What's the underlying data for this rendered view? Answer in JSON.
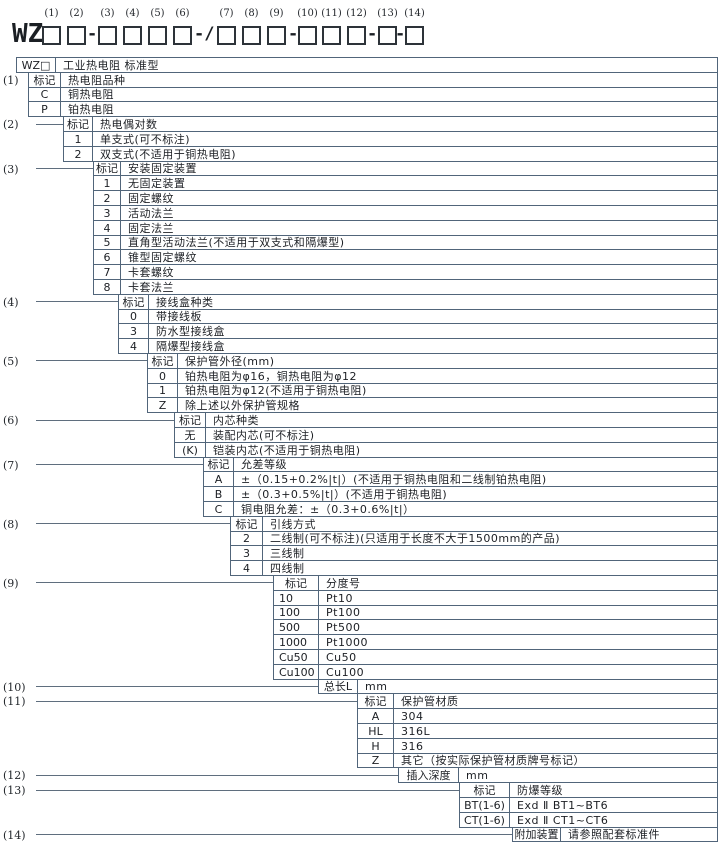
{
  "colors": {
    "border": "#51657a",
    "connector_line": "#5f6e7e",
    "text": "#1c1f24"
  },
  "code_line": {
    "prefix": "WZ",
    "items": [
      {
        "type": "box",
        "label": "(1)"
      },
      {
        "type": "box",
        "label": "(2)"
      },
      {
        "type": "sep",
        "text": "-"
      },
      {
        "type": "box",
        "label": "(3)"
      },
      {
        "type": "box",
        "label": "(4)"
      },
      {
        "type": "box",
        "label": "(5)"
      },
      {
        "type": "box",
        "label": "(6)"
      },
      {
        "type": "sep",
        "text": "-/"
      },
      {
        "type": "box",
        "label": "(7)"
      },
      {
        "type": "box",
        "label": "(8)"
      },
      {
        "type": "box",
        "label": "(9)"
      },
      {
        "type": "sep",
        "text": "-"
      },
      {
        "type": "box",
        "label": "(10)"
      },
      {
        "type": "box",
        "label": "(11)"
      },
      {
        "type": "box",
        "label": "(12)"
      },
      {
        "type": "sep",
        "text": "-"
      },
      {
        "type": "box",
        "label": "(13)"
      },
      {
        "type": "sep",
        "text": "-"
      },
      {
        "type": "box",
        "label": "(14)"
      }
    ]
  },
  "sections": [
    {
      "label": "",
      "rows": [
        {
          "code": "WZ□",
          "desc": "工业热电阻 标准型"
        }
      ]
    },
    {
      "label": "(1)",
      "rows": [
        {
          "code": "标记",
          "desc": "热电阻品种"
        },
        {
          "code": "C",
          "desc": "铜热电阻"
        },
        {
          "code": "P",
          "desc": "铂热电阻"
        }
      ]
    },
    {
      "label": "(2)",
      "rows": [
        {
          "code": "标记",
          "desc": "热电偶对数"
        },
        {
          "code": "1",
          "desc": "单支式(可不标注)"
        },
        {
          "code": "2",
          "desc": "双支式(不适用于铜热电阻)"
        }
      ]
    },
    {
      "label": "(3)",
      "rows": [
        {
          "code": "标记",
          "desc": "安装固定装置"
        },
        {
          "code": "1",
          "desc": "无固定装置"
        },
        {
          "code": "2",
          "desc": "固定螺纹"
        },
        {
          "code": "3",
          "desc": "活动法兰"
        },
        {
          "code": "4",
          "desc": "固定法兰"
        },
        {
          "code": "5",
          "desc": "直角型活动法兰(不适用于双支式和隔爆型)"
        },
        {
          "code": "6",
          "desc": "锥型固定螺纹"
        },
        {
          "code": "7",
          "desc": "卡套螺纹"
        },
        {
          "code": "8",
          "desc": "卡套法兰"
        }
      ]
    },
    {
      "label": "(4)",
      "rows": [
        {
          "code": "标记",
          "desc": "接线盒种类"
        },
        {
          "code": "0",
          "desc": "带接线板"
        },
        {
          "code": "3",
          "desc": "防水型接线盒"
        },
        {
          "code": "4",
          "desc": "隔爆型接线盒"
        }
      ]
    },
    {
      "label": "(5)",
      "rows": [
        {
          "code": "标记",
          "desc": "保护管外径(mm)"
        },
        {
          "code": "0",
          "desc": "铂热电阻为φ16，铜热电阻为φ12"
        },
        {
          "code": "1",
          "desc": "铂热电阻为φ12(不适用于铜热电阻)"
        },
        {
          "code": "Z",
          "desc": "除上述以外保护管规格"
        }
      ]
    },
    {
      "label": "(6)",
      "rows": [
        {
          "code": "标记",
          "desc": "内芯种类"
        },
        {
          "code": "无",
          "desc": "装配内芯(可不标注)"
        },
        {
          "code": "(K)",
          "desc": "铠装内芯(不适用于铜热电阻)"
        }
      ]
    },
    {
      "label": "(7)",
      "rows": [
        {
          "code": "标记",
          "desc": "允差等级"
        },
        {
          "code": "A",
          "desc": "±（0.15+0.2%|t|）(不适用于铜热电阻和二线制铂热电阻)"
        },
        {
          "code": "B",
          "desc": "±（0.3+0.5%|t|）(不适用于铜热电阻)"
        },
        {
          "code": "C",
          "desc": "铜电阻允差：±（0.3+0.6%|t|）"
        }
      ]
    },
    {
      "label": "(8)",
      "rows": [
        {
          "code": "标记",
          "desc": "引线方式"
        },
        {
          "code": "2",
          "desc": "二线制(可不标注)(只适用于长度不大于1500mm的产品)"
        },
        {
          "code": "3",
          "desc": "三线制"
        },
        {
          "code": "4",
          "desc": "四线制"
        }
      ]
    },
    {
      "label": "(9)",
      "rows": [
        {
          "code": "标记",
          "desc": "分度号"
        },
        {
          "code": "10",
          "desc": "Pt10"
        },
        {
          "code": "100",
          "desc": "Pt100"
        },
        {
          "code": "500",
          "desc": "Pt500"
        },
        {
          "code": "1000",
          "desc": "Pt1000"
        },
        {
          "code": "Cu50",
          "desc": "Cu50"
        },
        {
          "code": "Cu100",
          "desc": "Cu100"
        }
      ]
    },
    {
      "label": "(10)",
      "rows": [
        {
          "code": "总长L",
          "desc": "mm"
        }
      ]
    },
    {
      "label": "(11)",
      "rows": [
        {
          "code": "标记",
          "desc": "保护管材质"
        },
        {
          "code": "A",
          "desc": "304"
        },
        {
          "code": "HL",
          "desc": "316L"
        },
        {
          "code": "H",
          "desc": "316"
        },
        {
          "code": "Z",
          "desc": "其它（按实际保护管材质牌号标记）"
        }
      ]
    },
    {
      "label": "(12)",
      "rows": [
        {
          "code": "插入深度",
          "desc": "mm"
        }
      ]
    },
    {
      "label": "(13)",
      "rows": [
        {
          "code": "标记",
          "desc": "防爆等级"
        },
        {
          "code": "BT(1-6)",
          "desc": "Exd Ⅱ BT1~BT6"
        },
        {
          "code": "CT(1-6)",
          "desc": "Exd Ⅱ CT1~CT6"
        }
      ]
    },
    {
      "label": "(14)",
      "rows": [
        {
          "code": "附加装置",
          "desc": "请参照配套标准件"
        }
      ]
    }
  ]
}
